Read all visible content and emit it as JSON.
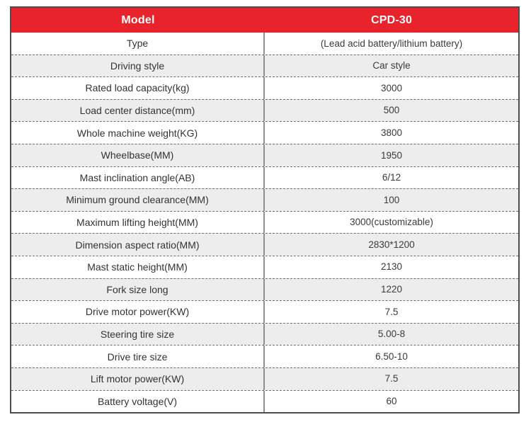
{
  "table": {
    "header": {
      "model_label": "Model",
      "model_value": "CPD-30"
    },
    "rows": [
      {
        "label": "Type",
        "value": "(Lead acid battery/lithium battery)"
      },
      {
        "label": "Driving style",
        "value": "Car style"
      },
      {
        "label": "Rated load capacity(kg)",
        "value": "3000"
      },
      {
        "label": "Load center distance(mm)",
        "value": "500"
      },
      {
        "label": "Whole machine weight(KG)",
        "value": "3800"
      },
      {
        "label": "Wheelbase(MM)",
        "value": "1950"
      },
      {
        "label": "Mast inclination angle(AB)",
        "value": "6/12"
      },
      {
        "label": "Minimum ground clearance(MM)",
        "value": "100"
      },
      {
        "label": "Maximum lifting height(MM)",
        "value": "3000(customizable)"
      },
      {
        "label": "Dimension aspect ratio(MM)",
        "value": "2830*1200"
      },
      {
        "label": "Mast static height(MM)",
        "value": "2130"
      },
      {
        "label": "Fork size long",
        "value": "1220"
      },
      {
        "label": "Drive motor power(KW)",
        "value": "7.5"
      },
      {
        "label": "Steering tire size",
        "value": "5.00-8"
      },
      {
        "label": "Drive tire size",
        "value": "6.50-10"
      },
      {
        "label": "Lift motor power(KW)",
        "value": "7.5"
      },
      {
        "label": "Battery voltage(V)",
        "value": "60"
      }
    ],
    "colors": {
      "header_bg": "#e9232b",
      "header_text": "#ffffff",
      "row_alt_bg": "#ededee",
      "row_bg": "#ffffff",
      "outer_border": "#4d4d4d",
      "divider": "#8f8f8f",
      "row_text": "#333333"
    }
  }
}
